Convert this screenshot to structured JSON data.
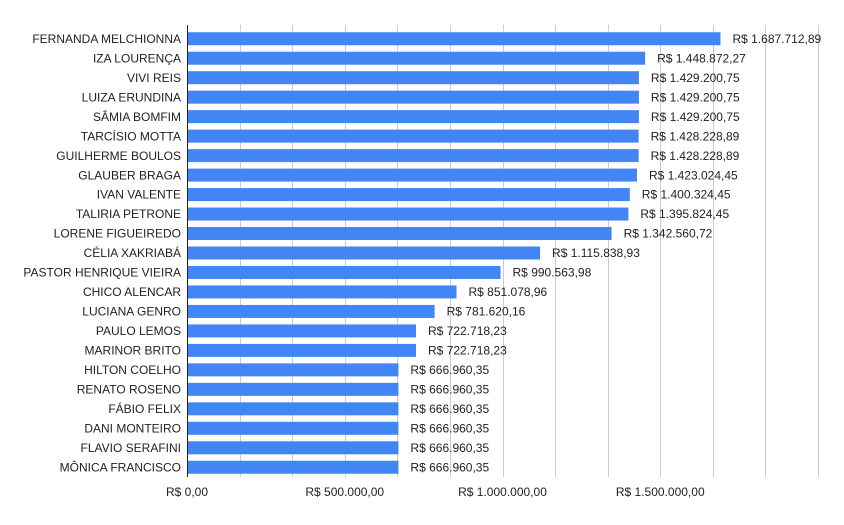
{
  "chart_data": {
    "type": "bar",
    "orientation": "horizontal",
    "title": "",
    "xlabel": "",
    "ylabel": "",
    "xlim": [
      0,
      2000000
    ],
    "grid": true,
    "legend": "none",
    "bar_color": "#4285f4",
    "gridline_color": "#cccccc",
    "axis_color": "#222222",
    "categories": [
      "FERNANDA MELCHIONNA",
      "IZA LOURENÇA",
      "VIVI REIS",
      "LUIZA ERUNDINA",
      "SÂMIA BOMFIM",
      "TARCÍSIO MOTTA",
      "GUILHERME BOULOS",
      "GLAUBER BRAGA",
      "IVAN VALENTE",
      "TALIRIA PETRONE",
      "LORENE FIGUEIREDO",
      "CÉLIA XAKRIABÁ",
      "PASTOR HENRIQUE VIEIRA",
      "CHICO ALENCAR",
      "LUCIANA GENRO",
      "PAULO LEMOS",
      "MARINOR BRITO",
      "HILTON COELHO",
      "RENATO ROSENO",
      "FÁBIO FELIX",
      "DANI MONTEIRO",
      "FLAVIO SERAFINI",
      "MÔNICA FRANCISCO"
    ],
    "values": [
      1687712.89,
      1448872.27,
      1429200.75,
      1429200.75,
      1429200.75,
      1428228.89,
      1428228.89,
      1423024.45,
      1400324.45,
      1395824.45,
      1342560.72,
      1115838.93,
      990563.98,
      851078.96,
      781620.16,
      722718.23,
      722718.23,
      666960.35,
      666960.35,
      666960.35,
      666960.35,
      666960.35,
      666960.35
    ],
    "data_labels": [
      "R$ 1.687.712,89",
      "R$ 1.448.872,27",
      "R$ 1.429.200,75",
      "R$ 1.429.200,75",
      "R$ 1.429.200,75",
      "R$ 1.428.228,89",
      "R$ 1.428.228,89",
      "R$ 1.423.024,45",
      "R$ 1.400.324,45",
      "R$ 1.395.824,45",
      "R$ 1.342.560,72",
      "R$ 1.115.838,93",
      "R$ 990.563,98",
      "R$ 851.078,96",
      "R$ 781.620,16",
      "R$ 722.718,23",
      "R$ 722.718,23",
      "R$ 666.960,35",
      "R$ 666.960,35",
      "R$ 666.960,35",
      "R$ 666.960,35",
      "R$ 666.960,35",
      "R$ 666.960,35"
    ],
    "x_ticks": [
      {
        "value": 0,
        "label": "R$ 0,00"
      },
      {
        "value": 500000,
        "label": "R$ 500.000,00"
      },
      {
        "value": 1000000,
        "label": "R$ 1.000.000,00"
      },
      {
        "value": 1500000,
        "label": "R$ 1.500.000,00"
      }
    ],
    "minor_grid_step": 166666.667
  }
}
